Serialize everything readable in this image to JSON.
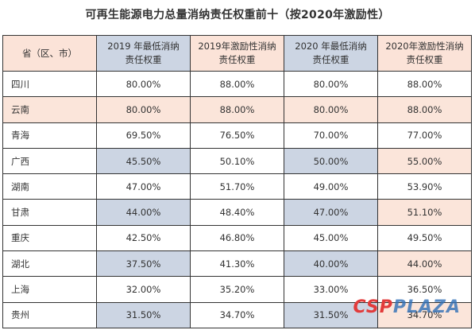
{
  "title": "可再生能源电力总量消纳责任权重前十（按2020年激励性）",
  "headers": {
    "province": "省（区、市）",
    "c2019min": [
      "2019 年最低消纳",
      "责任权重"
    ],
    "c2019inc": [
      "2019年激励性消纳",
      "责任权重"
    ],
    "c2020min": [
      "2020 年最低消纳",
      "责任权重"
    ],
    "c2020inc": [
      "2020年激励性消纳",
      "责任权重"
    ]
  },
  "rows": [
    {
      "name": "四川",
      "v2019min": "80.00%",
      "v2019inc": "88.00%",
      "v2020min": "80.00%",
      "v2020inc": "88.00%"
    },
    {
      "name": "云南",
      "v2019min": "80.00%",
      "v2019inc": "88.00%",
      "v2020min": "80.00%",
      "v2020inc": "88.00%"
    },
    {
      "name": "青海",
      "v2019min": "69.50%",
      "v2019inc": "76.50%",
      "v2020min": "70.00%",
      "v2020inc": "77.00%"
    },
    {
      "name": "广西",
      "v2019min": "45.50%",
      "v2019inc": "50.10%",
      "v2020min": "50.00%",
      "v2020inc": "55.00%"
    },
    {
      "name": "湖南",
      "v2019min": "47.00%",
      "v2019inc": "51.70%",
      "v2020min": "49.00%",
      "v2020inc": "53.90%"
    },
    {
      "name": "甘肃",
      "v2019min": "44.00%",
      "v2019inc": "48.40%",
      "v2020min": "47.00%",
      "v2020inc": "51.10%"
    },
    {
      "name": "重庆",
      "v2019min": "42.50%",
      "v2019inc": "46.80%",
      "v2020min": "45.00%",
      "v2020inc": "49.50%"
    },
    {
      "name": "湖北",
      "v2019min": "37.50%",
      "v2019inc": "41.30%",
      "v2020min": "40.00%",
      "v2020inc": "44.00%"
    },
    {
      "name": "上海",
      "v2019min": "32.00%",
      "v2019inc": "35.20%",
      "v2020min": "33.00%",
      "v2020inc": "36.50%"
    },
    {
      "name": "贵州",
      "v2019min": "31.50%",
      "v2019inc": "34.70%",
      "v2020min": "31.50%",
      "v2020inc": "34.70%"
    }
  ],
  "watermark": {
    "csp": "CSP",
    "plaza": "PLAZA"
  }
}
